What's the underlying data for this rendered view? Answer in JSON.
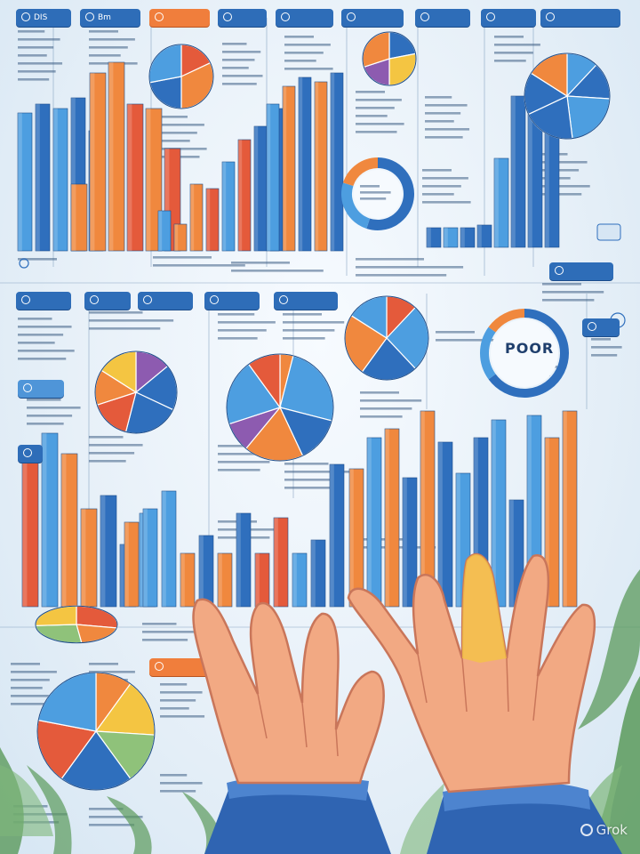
{
  "scene": {
    "background": "#eef4fa",
    "palette": {
      "blue": "#2f6fbd",
      "light_blue": "#4d9ee0",
      "orange": "#f0883e",
      "red": "#e45a3b",
      "purple": "#8d5bb0",
      "yellow": "#f4c542",
      "green": "#8fc27a",
      "skin": "#f2a983",
      "sleeve": "#2f64b2",
      "foliage": "#5b9a5b"
    }
  },
  "tabs": [
    {
      "id": "t1",
      "label": "DIS",
      "style": "blue"
    },
    {
      "id": "t2",
      "label": "Bm",
      "style": "blue"
    },
    {
      "id": "t3",
      "label": "",
      "style": "orange"
    },
    {
      "id": "t4",
      "label": "",
      "style": "blue"
    },
    {
      "id": "t5",
      "label": "",
      "style": "blue"
    },
    {
      "id": "t6",
      "label": "",
      "style": "blue"
    },
    {
      "id": "t7",
      "label": "",
      "style": "blue"
    },
    {
      "id": "t8",
      "label": "",
      "style": "blue"
    },
    {
      "id": "t9",
      "label": "",
      "style": "blue"
    },
    {
      "id": "t10",
      "label": "",
      "style": "blue"
    },
    {
      "id": "t11",
      "label": "",
      "style": "blue"
    },
    {
      "id": "t12",
      "label": "",
      "style": "blue"
    },
    {
      "id": "t13",
      "label": "",
      "style": "blue"
    },
    {
      "id": "t14",
      "label": "",
      "style": "light"
    },
    {
      "id": "t15",
      "label": "",
      "style": "blue"
    },
    {
      "id": "t16",
      "label": "",
      "style": "blue"
    },
    {
      "id": "t17",
      "label": "",
      "style": "orange"
    },
    {
      "id": "t18",
      "label": "",
      "style": "blue"
    },
    {
      "id": "t19",
      "label": "",
      "style": "blue"
    }
  ],
  "donuts": [
    {
      "id": "donut-top",
      "center_text": "",
      "sub_text": ""
    },
    {
      "id": "donut-right",
      "center_text": "POOR",
      "sub_text": ""
    }
  ],
  "watermark": {
    "text": "Grok"
  }
}
